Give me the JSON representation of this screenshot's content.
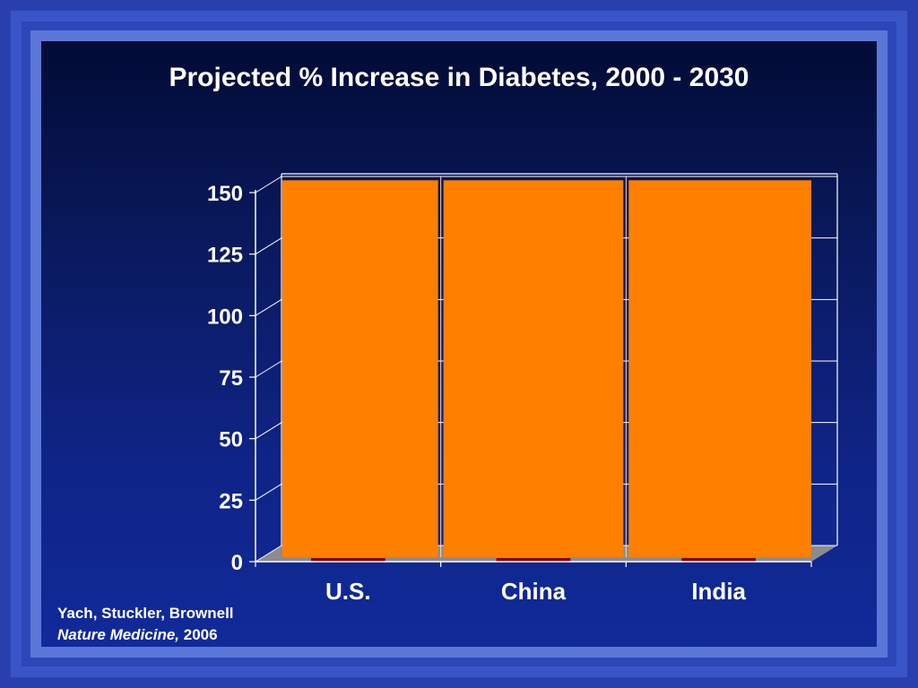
{
  "slide": {
    "title": "Projected % Increase in Diabetes, 2000 - 2030",
    "source_authors": "Yach, Stuckler, Brownell",
    "source_journal": "Nature Medicine,",
    "source_year": " 2006"
  },
  "colors": {
    "background": "#1f2f9e",
    "bar": "#ff8000",
    "bar_base": "#8b0000",
    "gridline": "#ffffff",
    "floor": "#8c8c8c"
  },
  "chart_data": {
    "type": "bar",
    "title": "Projected % Increase in Diabetes, 2000 - 2030",
    "categories": [
      "U.S.",
      "China",
      "India"
    ],
    "series": [
      {
        "values": [
          155,
          155,
          155
        ]
      }
    ],
    "ylim": [
      0,
      150
    ],
    "yticks": [
      0,
      25,
      50,
      75,
      100,
      125,
      150
    ],
    "grid": true,
    "legend": "none",
    "style": "3d"
  }
}
